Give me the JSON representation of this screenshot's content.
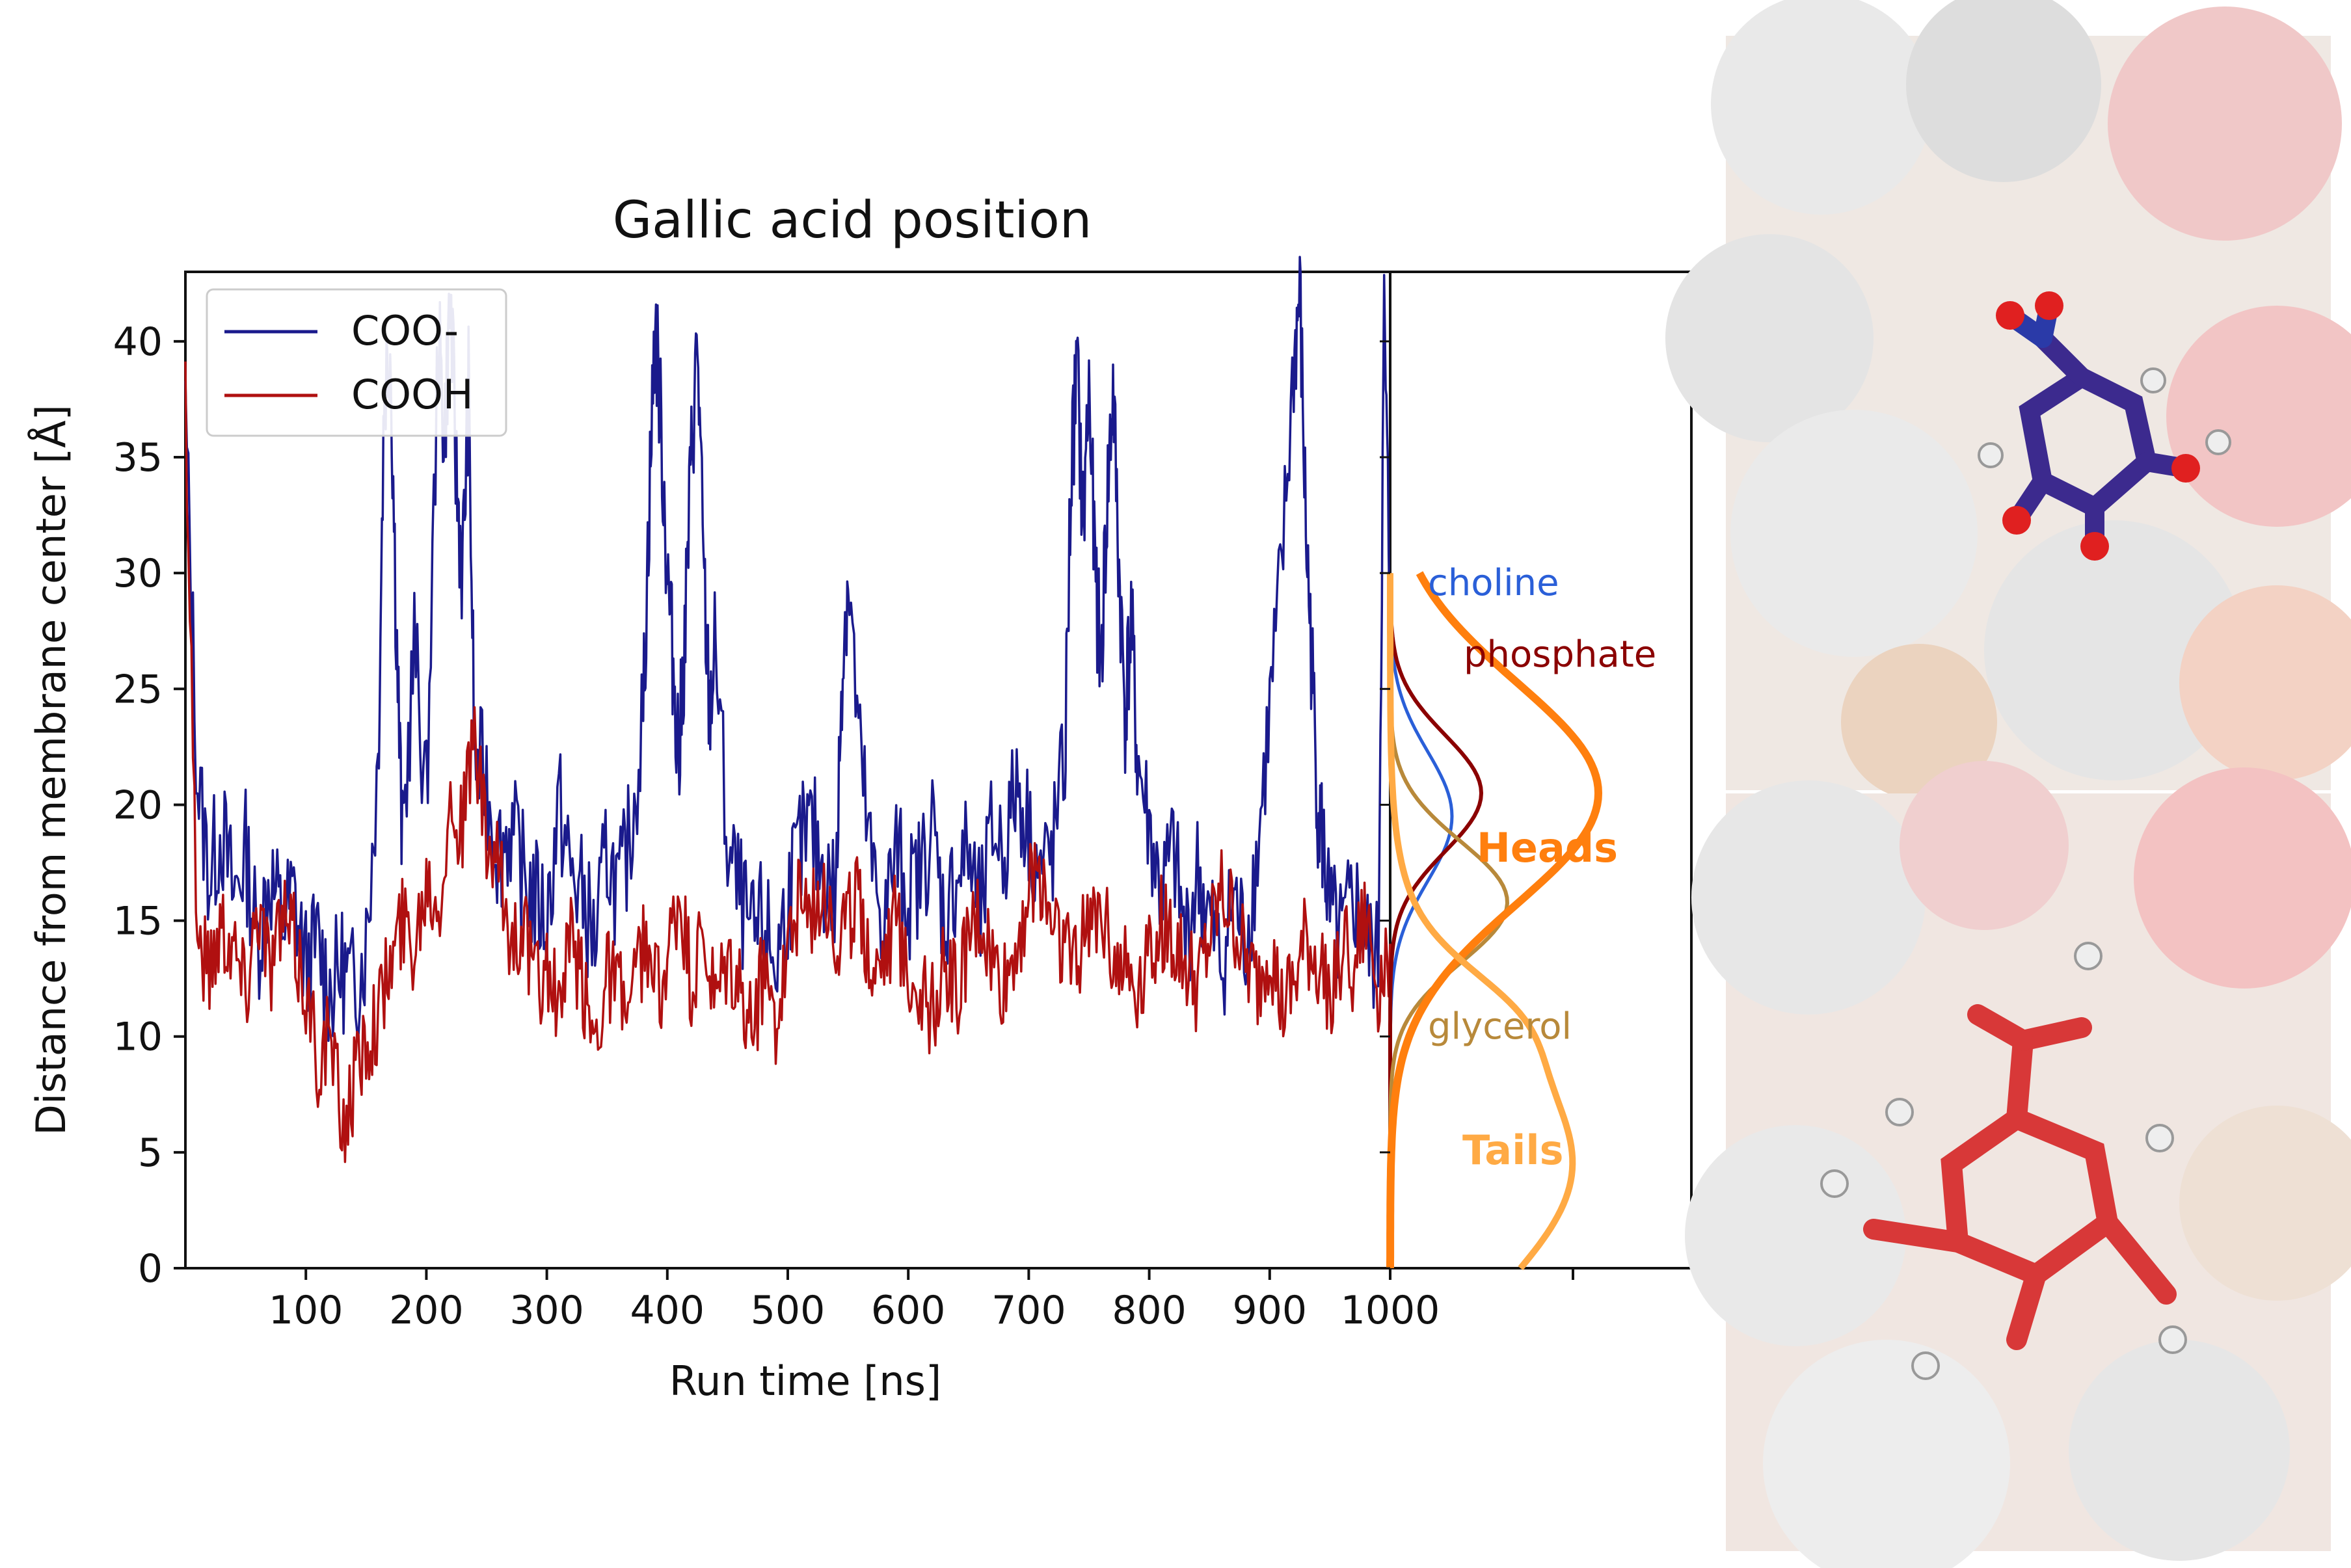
{
  "chart_data": {
    "type": "line",
    "title": "Gallic acid position",
    "xlabel": "Run time [ns]",
    "ylabel": "Distance from membrane center [Å]",
    "xlim": [
      0,
      1000
    ],
    "ylim": [
      0,
      43
    ],
    "xticks": [
      100,
      200,
      300,
      400,
      500,
      600,
      700,
      800,
      900,
      1000
    ],
    "yticks": [
      0,
      5,
      10,
      15,
      20,
      25,
      30,
      35,
      40
    ],
    "legend": {
      "position": "top-left"
    },
    "series": [
      {
        "name": "COO-",
        "color": "#1a1a8c",
        "x": [
          0,
          10,
          20,
          30,
          40,
          50,
          60,
          70,
          80,
          90,
          100,
          110,
          120,
          130,
          140,
          150,
          160,
          165,
          170,
          175,
          180,
          190,
          200,
          210,
          215,
          220,
          225,
          230,
          235,
          240,
          250,
          260,
          270,
          280,
          290,
          300,
          310,
          320,
          330,
          340,
          350,
          360,
          370,
          380,
          385,
          390,
          395,
          400,
          405,
          410,
          415,
          420,
          425,
          430,
          435,
          440,
          450,
          460,
          470,
          480,
          490,
          500,
          510,
          520,
          530,
          540,
          545,
          550,
          560,
          570,
          580,
          590,
          600,
          610,
          620,
          630,
          640,
          650,
          660,
          670,
          680,
          690,
          700,
          710,
          720,
          730,
          735,
          740,
          745,
          750,
          755,
          760,
          765,
          770,
          775,
          780,
          785,
          790,
          800,
          810,
          820,
          830,
          840,
          850,
          860,
          870,
          880,
          890,
          900,
          910,
          920,
          925,
          930,
          935,
          940,
          945,
          950,
          960,
          970,
          980,
          990,
          995,
          1000
        ],
        "y": [
          37,
          21,
          17,
          19,
          16,
          18,
          14,
          17,
          15,
          16,
          13,
          14,
          12,
          13,
          12,
          14,
          22,
          38,
          40,
          28,
          18,
          27,
          20,
          40,
          36,
          42,
          34,
          30,
          38,
          22,
          21,
          18,
          19,
          17,
          16,
          15,
          20,
          17,
          16,
          14,
          18,
          16,
          19,
          24,
          33,
          41,
          36,
          30,
          26,
          22,
          28,
          35,
          40,
          30,
          24,
          27,
          18,
          16,
          14,
          15,
          13,
          16,
          18,
          19,
          17,
          16,
          26,
          30,
          22,
          17,
          15,
          18,
          16,
          17,
          19,
          15,
          17,
          18,
          15,
          19,
          18,
          21,
          19,
          17,
          18,
          22,
          34,
          39,
          32,
          38,
          30,
          26,
          33,
          38,
          30,
          24,
          28,
          22,
          19,
          16,
          18,
          14,
          17,
          15,
          13,
          16,
          14,
          18,
          24,
          30,
          39,
          42,
          32,
          26,
          20,
          18,
          15,
          14,
          16,
          14,
          13,
          41,
          28
        ]
      },
      {
        "name": "COOH",
        "color": "#b01010",
        "x": [
          0,
          10,
          20,
          30,
          40,
          50,
          60,
          70,
          80,
          90,
          100,
          110,
          120,
          130,
          140,
          150,
          160,
          170,
          180,
          190,
          200,
          210,
          220,
          230,
          240,
          250,
          260,
          270,
          280,
          290,
          300,
          310,
          320,
          330,
          340,
          350,
          360,
          370,
          380,
          390,
          400,
          410,
          420,
          430,
          440,
          450,
          460,
          470,
          480,
          490,
          500,
          510,
          520,
          530,
          540,
          550,
          560,
          570,
          580,
          590,
          600,
          610,
          620,
          630,
          640,
          650,
          660,
          670,
          680,
          690,
          700,
          710,
          720,
          730,
          740,
          750,
          760,
          770,
          780,
          790,
          800,
          810,
          820,
          830,
          840,
          850,
          860,
          870,
          880,
          890,
          900,
          910,
          920,
          930,
          940,
          950,
          960,
          970,
          980,
          990,
          1000
        ],
        "y": [
          38,
          14,
          13,
          15,
          14,
          12,
          16,
          13,
          15,
          14,
          12,
          9,
          10,
          6,
          8,
          10,
          11,
          13,
          15,
          14,
          17,
          16,
          20,
          19,
          23,
          18,
          17,
          14,
          15,
          12,
          13,
          11,
          14,
          12,
          10,
          13,
          12,
          11,
          14,
          12,
          13,
          16,
          12,
          14,
          11,
          13,
          12,
          10,
          13,
          11,
          14,
          16,
          15,
          17,
          14,
          15,
          16,
          13,
          14,
          15,
          13,
          12,
          11,
          13,
          12,
          14,
          15,
          13,
          12,
          14,
          16,
          17,
          15,
          14,
          13,
          15,
          16,
          14,
          13,
          12,
          14,
          15,
          14,
          13,
          12,
          14,
          16,
          15,
          13,
          12,
          14,
          11,
          12,
          14,
          13,
          12,
          14,
          13,
          15,
          12,
          14
        ]
      }
    ],
    "density_panel": {
      "type": "line",
      "curves": [
        {
          "name": "choline",
          "color": "#2a5fd8"
        },
        {
          "name": "phosphate",
          "color": "#8b0000"
        },
        {
          "name": "glycerol",
          "color": "#b8893a"
        },
        {
          "name": "Heads",
          "color": "#ff7f0e"
        },
        {
          "name": "Tails",
          "color": "#ffaa44"
        }
      ]
    }
  }
}
